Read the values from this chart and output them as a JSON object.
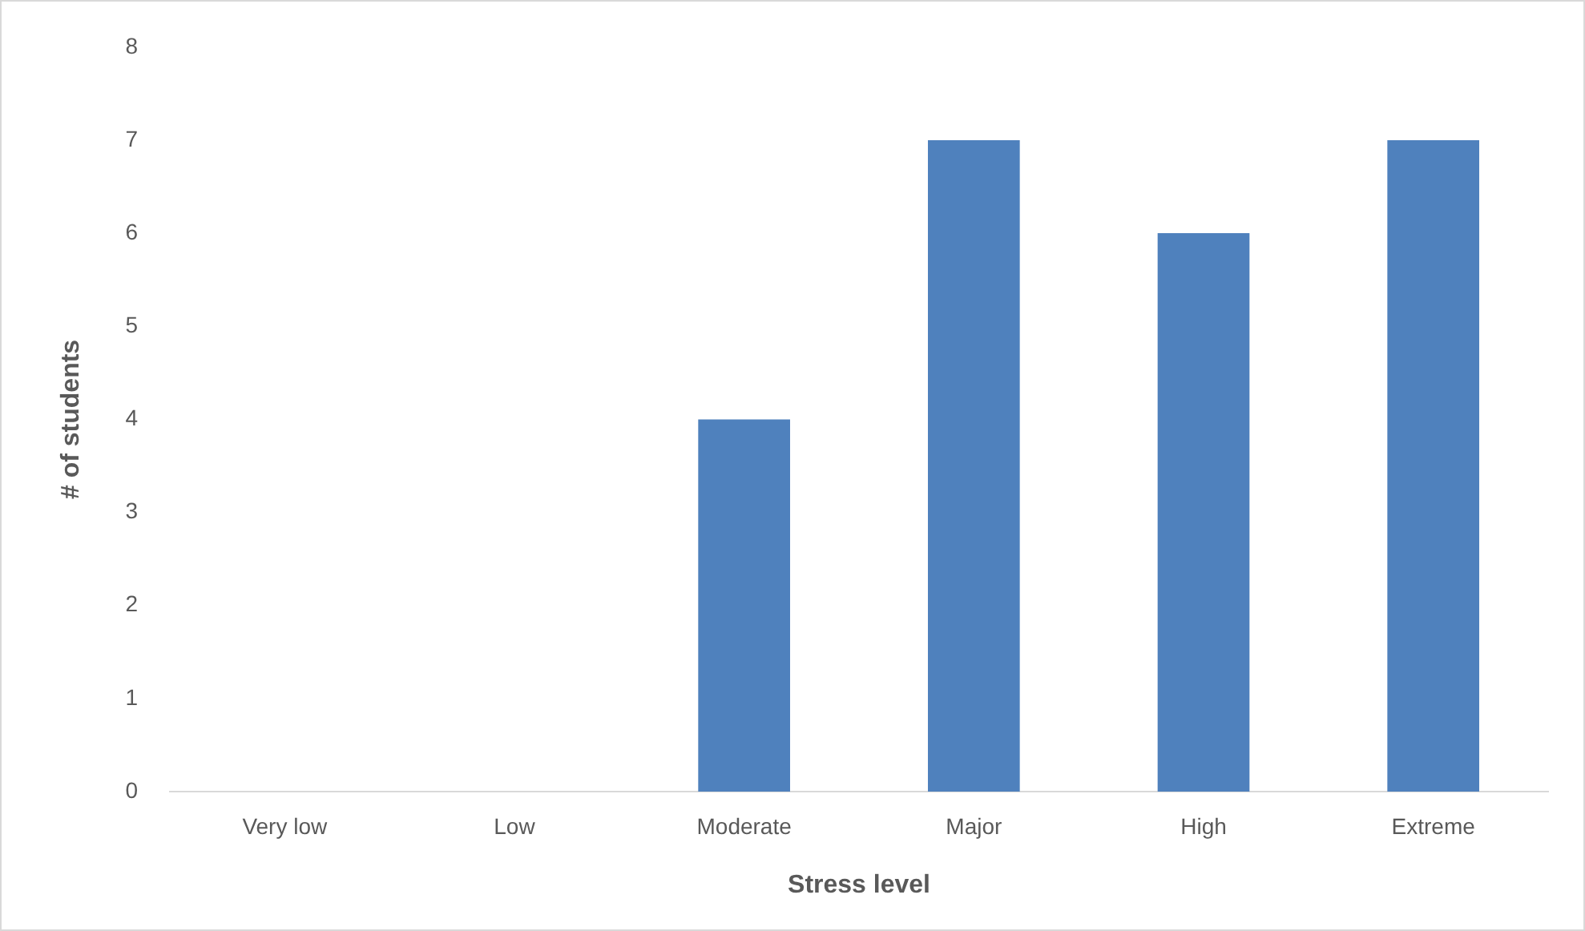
{
  "chart_data": {
    "type": "bar",
    "xlabel": "Stress level",
    "ylabel": "# of students",
    "categories": [
      "Very low",
      "Low",
      "Moderate",
      "Major",
      "High",
      "Extreme"
    ],
    "values": [
      0,
      0,
      4,
      7,
      6,
      7
    ],
    "color": "#4f81bd",
    "ylim": [
      0,
      8
    ],
    "yticks": [
      0,
      1,
      2,
      3,
      4,
      5,
      6,
      7,
      8
    ],
    "grid": false,
    "legend": false
  }
}
